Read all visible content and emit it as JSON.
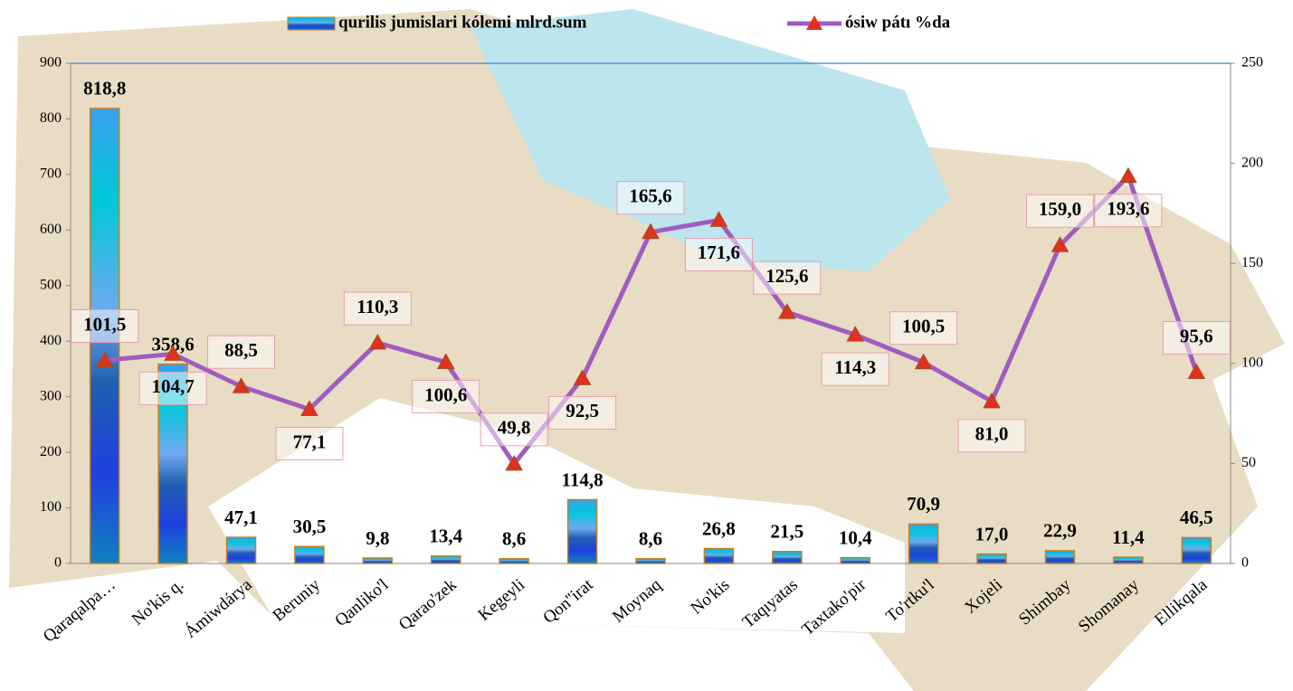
{
  "chart_data": {
    "type": "bar_line",
    "categories": [
      "Qaraqalpa…",
      "No'kis q.",
      "Ámiwdárya",
      "Beruniy",
      "Qanliko'l",
      "Qarao'zek",
      "Kegeyli",
      "Qon''irat",
      "Moynaq",
      "No'kis",
      "Taqıyatas",
      "Taxtako'pir",
      "To'rtku'l",
      "Xojeli",
      "Shimbay",
      "Shomanay",
      "Ellikqala"
    ],
    "series": [
      {
        "name": "qurilis jumislari kólemi mlrd.sum",
        "type": "bar",
        "color": "#1e90ff",
        "values": [
          818.8,
          358.6,
          47.1,
          30.5,
          9.8,
          13.4,
          8.6,
          114.8,
          8.6,
          26.8,
          21.5,
          10.4,
          70.9,
          17.0,
          22.9,
          11.4,
          46.5
        ],
        "value_labels": [
          "818,8",
          "358,6",
          "47,1",
          "30,5",
          "9,8",
          "13,4",
          "8,6",
          "114,8",
          "8,6",
          "26,8",
          "21,5",
          "10,4",
          "70,9",
          "17,0",
          "22,9",
          "11,4",
          "46,5"
        ]
      },
      {
        "name": "ósiw pátı  %da",
        "type": "line",
        "axis": "y2",
        "color": "#a05cc0",
        "values": [
          101.5,
          104.7,
          88.5,
          77.1,
          110.3,
          100.6,
          49.8,
          92.5,
          165.6,
          171.6,
          125.6,
          114.3,
          100.5,
          81.0,
          159.0,
          193.6,
          95.6
        ],
        "value_labels": [
          "101,5",
          "104,7",
          "88,5",
          "77,1",
          "110,3",
          "100,6",
          "49,8",
          "92,5",
          "165,6",
          "171,6",
          "125,6",
          "114,3",
          "100,5",
          "81,0",
          "159,0",
          "193,6",
          "95,6"
        ]
      }
    ],
    "ylim": [
      0,
      900
    ],
    "yticks": [
      0,
      100,
      200,
      300,
      400,
      500,
      600,
      700,
      800,
      900
    ],
    "y2lim": [
      0,
      250
    ],
    "y2ticks": [
      0,
      50,
      100,
      150,
      200,
      250
    ]
  }
}
